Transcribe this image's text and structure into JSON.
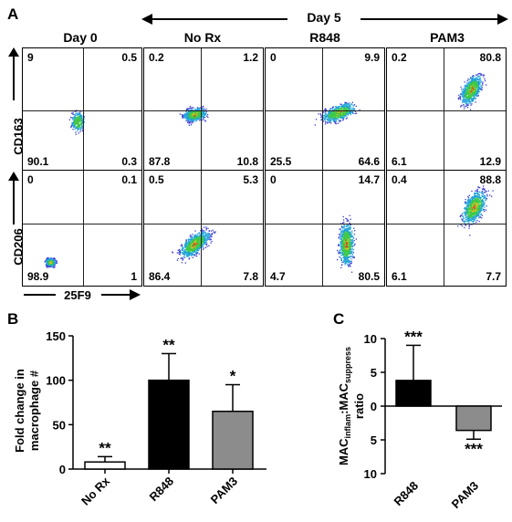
{
  "panel_labels": {
    "a": "A",
    "b": "B",
    "c": "C"
  },
  "day5_label": "Day 5",
  "column_headers": [
    "Day 0",
    "No Rx",
    "R848",
    "PAM3"
  ],
  "y_axis_labels": {
    "row1": "CD163",
    "row2": "CD206"
  },
  "x_axis_label": "25F9",
  "flow_quadrants": {
    "row1": [
      {
        "tl": "9",
        "tr": "0.5",
        "bl": "90.1",
        "br": "0.3"
      },
      {
        "tl": "0.2",
        "tr": "1.2",
        "bl": "87.8",
        "br": "10.8"
      },
      {
        "tl": "0",
        "tr": "9.9",
        "bl": "25.5",
        "br": "64.6"
      },
      {
        "tl": "0.2",
        "tr": "80.8",
        "bl": "6.1",
        "br": "12.9"
      }
    ],
    "row2": [
      {
        "tl": "0",
        "tr": "0.1",
        "bl": "98.9",
        "br": "1"
      },
      {
        "tl": "0.5",
        "tr": "5.3",
        "bl": "86.4",
        "br": "7.8"
      },
      {
        "tl": "0",
        "tr": "14.7",
        "bl": "4.7",
        "br": "80.5"
      },
      {
        "tl": "0.4",
        "tr": "88.8",
        "bl": "6.1",
        "br": "7.7"
      }
    ]
  },
  "chart_data": [
    {
      "type": "bar",
      "panel": "B",
      "categories": [
        "No Rx",
        "R848",
        "PAM3"
      ],
      "values": [
        8,
        100,
        65
      ],
      "errors": [
        6,
        30,
        30
      ],
      "significance": [
        "**",
        "**",
        "*"
      ],
      "colors": [
        "#ffffff",
        "#000000",
        "#8c8c8c"
      ],
      "ylabel_line1": "Fold change in",
      "ylabel_line2": "macrophage #",
      "ylim": [
        0,
        150
      ],
      "yticks": [
        "0",
        "50",
        "100",
        "150"
      ]
    },
    {
      "type": "bar",
      "panel": "C",
      "categories": [
        "R848",
        "PAM3"
      ],
      "values": [
        3.8,
        -3.6
      ],
      "errors": [
        5.2,
        1.3
      ],
      "significance": [
        "***",
        "***"
      ],
      "colors": [
        "#000000",
        "#8c8c8c"
      ],
      "ylabel_main": "MAC",
      "ylabel_sub1": "inflam",
      "ylabel_mid": ":MAC",
      "ylabel_sub2": "suppress",
      "ylabel_line2": "ratio",
      "ylim": [
        -10,
        10
      ],
      "yticks": [
        "10",
        "5",
        "0",
        "5",
        "10"
      ]
    }
  ]
}
